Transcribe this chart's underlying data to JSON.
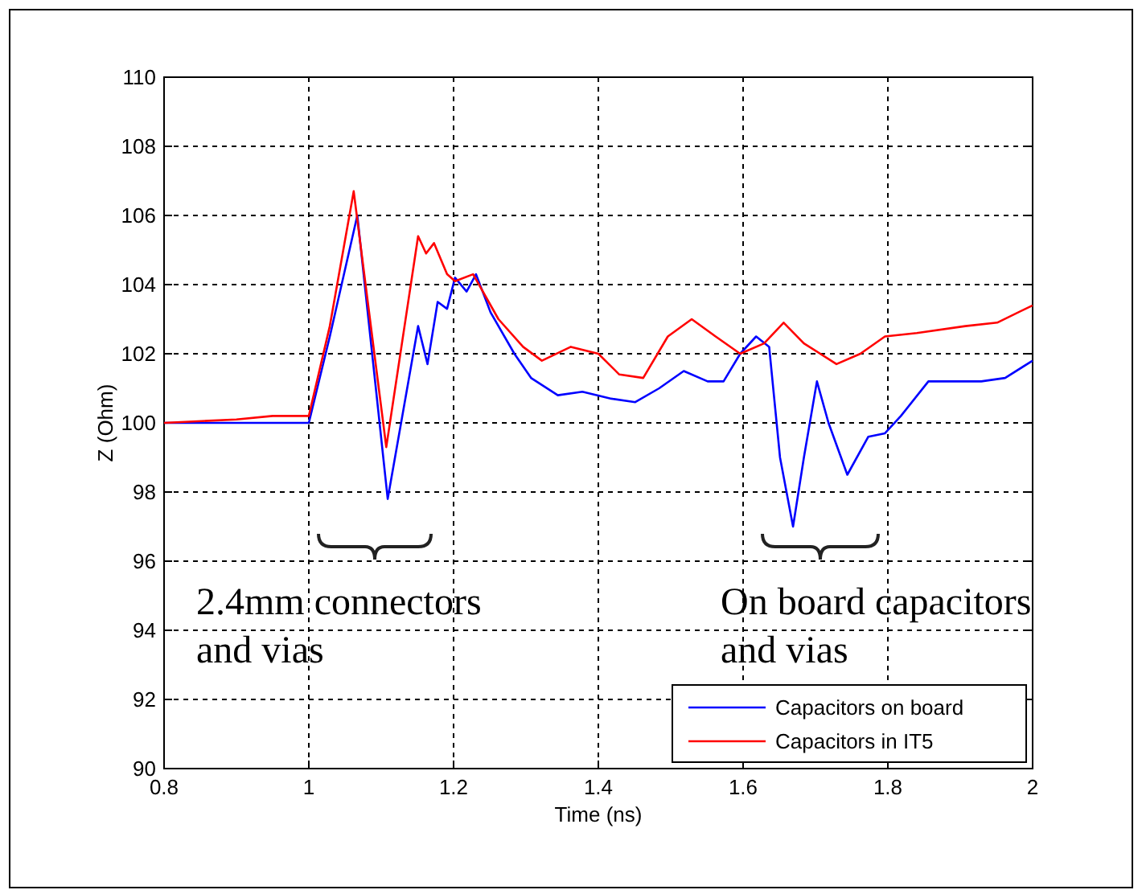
{
  "chart_data": {
    "type": "line",
    "xlabel": "Time (ns)",
    "ylabel": "Z (Ohm)",
    "xlim": [
      0.8,
      2
    ],
    "xticks": [
      0.8,
      1,
      1.2,
      1.4,
      1.6,
      1.8,
      2
    ],
    "ylim": [
      90,
      110
    ],
    "yticks": [
      90,
      92,
      94,
      96,
      98,
      100,
      102,
      104,
      106,
      108,
      110
    ],
    "grid": true,
    "legend": "bottom right",
    "marker": "none",
    "line_style": "solid",
    "annotations": [
      "2.4mm connectors\nand vias",
      "On board capacitors\nand vias"
    ],
    "series": [
      {
        "name": "Capacitors on board",
        "color": "#0000ff",
        "x": [
          0.8,
          0.9,
          0.95,
          1.0,
          1.029,
          1.067,
          1.109,
          1.151,
          1.164,
          1.178,
          1.191,
          1.202,
          1.218,
          1.231,
          1.251,
          1.284,
          1.307,
          1.344,
          1.378,
          1.418,
          1.451,
          1.484,
          1.518,
          1.551,
          1.573,
          1.596,
          1.618,
          1.636,
          1.651,
          1.669,
          1.684,
          1.702,
          1.718,
          1.744,
          1.773,
          1.796,
          1.818,
          1.856,
          1.929,
          1.962,
          2.0
        ],
        "values": [
          100,
          100,
          100,
          100,
          102.5,
          106,
          97.8,
          102.8,
          101.7,
          103.5,
          103.3,
          104.2,
          103.8,
          104.3,
          103.2,
          102,
          101.3,
          100.8,
          100.9,
          100.7,
          100.6,
          101,
          101.5,
          101.2,
          101.2,
          102,
          102.5,
          102.2,
          99,
          97,
          99,
          101.2,
          100,
          98.5,
          99.6,
          99.7,
          100.2,
          101.2,
          101.2,
          101.3,
          101.8
        ]
      },
      {
        "name": "Capacitors in IT5",
        "color": "#ff0000",
        "x": [
          0.8,
          0.9,
          0.95,
          1.0,
          1.029,
          1.062,
          1.107,
          1.151,
          1.162,
          1.173,
          1.191,
          1.202,
          1.227,
          1.262,
          1.296,
          1.322,
          1.362,
          1.4,
          1.429,
          1.462,
          1.496,
          1.529,
          1.562,
          1.596,
          1.629,
          1.656,
          1.684,
          1.729,
          1.762,
          1.796,
          1.84,
          1.907,
          1.951,
          2.0
        ],
        "values": [
          100,
          100.1,
          100.2,
          100.2,
          102.8,
          106.7,
          99.3,
          105.4,
          104.9,
          105.2,
          104.3,
          104.1,
          104.3,
          103,
          102.2,
          101.8,
          102.2,
          102,
          101.4,
          101.3,
          102.5,
          103,
          102.5,
          102,
          102.3,
          102.9,
          102.3,
          101.7,
          102,
          102.5,
          102.6,
          102.8,
          102.9,
          103.4
        ]
      }
    ]
  }
}
